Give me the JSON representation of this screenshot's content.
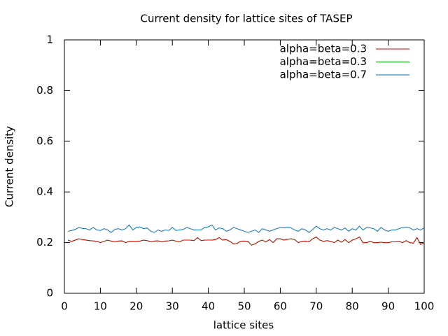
{
  "chart_data": {
    "type": "line",
    "title": "Current density for lattice sites of TASEP",
    "xlabel": "lattice sites",
    "ylabel": "Current density",
    "x": [
      1,
      2,
      3,
      4,
      5,
      6,
      7,
      8,
      9,
      10,
      11,
      12,
      13,
      14,
      15,
      16,
      17,
      18,
      19,
      20,
      21,
      22,
      23,
      24,
      25,
      26,
      27,
      28,
      29,
      30,
      31,
      32,
      33,
      34,
      35,
      36,
      37,
      38,
      39,
      40,
      41,
      42,
      43,
      44,
      45,
      46,
      47,
      48,
      49,
      50,
      51,
      52,
      53,
      54,
      55,
      56,
      57,
      58,
      59,
      60,
      61,
      62,
      63,
      64,
      65,
      66,
      67,
      68,
      69,
      70,
      71,
      72,
      73,
      74,
      75,
      76,
      77,
      78,
      79,
      80,
      81,
      82,
      83,
      84,
      85,
      86,
      87,
      88,
      89,
      90,
      91,
      92,
      93,
      94,
      95,
      96,
      97,
      98,
      99,
      100
    ],
    "series": [
      {
        "name": "alpha=beta=0.3",
        "color": "#dd0000",
        "values": [
          0.21,
          0.205,
          0.21,
          0.215,
          0.212,
          0.21,
          0.208,
          0.207,
          0.205,
          0.2,
          0.205,
          0.21,
          0.206,
          0.204,
          0.206,
          0.207,
          0.2,
          0.205,
          0.205,
          0.205,
          0.206,
          0.21,
          0.208,
          0.203,
          0.206,
          0.207,
          0.203,
          0.206,
          0.207,
          0.21,
          0.206,
          0.203,
          0.21,
          0.21,
          0.21,
          0.208,
          0.22,
          0.208,
          0.21,
          0.21,
          0.21,
          0.212,
          0.22,
          0.21,
          0.212,
          0.205,
          0.195,
          0.197,
          0.205,
          0.206,
          0.205,
          0.19,
          0.195,
          0.205,
          0.21,
          0.203,
          0.212,
          0.2,
          0.215,
          0.215,
          0.21,
          0.213,
          0.215,
          0.212,
          0.2,
          0.205,
          0.206,
          0.203,
          0.215,
          0.222,
          0.21,
          0.205,
          0.208,
          0.205,
          0.2,
          0.21,
          0.202,
          0.212,
          0.2,
          0.21,
          0.215,
          0.222,
          0.2,
          0.2,
          0.205,
          0.2,
          0.2,
          0.202,
          0.2,
          0.2,
          0.203,
          0.203,
          0.205,
          0.2,
          0.208,
          0.2,
          0.198,
          0.22,
          0.193,
          0.2
        ]
      },
      {
        "name": "alpha=beta=0.3",
        "color": "#00a000",
        "values": [
          0.21,
          0.205,
          0.21,
          0.215,
          0.212,
          0.21,
          0.208,
          0.207,
          0.205,
          0.2,
          0.205,
          0.21,
          0.206,
          0.204,
          0.206,
          0.207,
          0.2,
          0.205,
          0.205,
          0.205,
          0.206,
          0.21,
          0.208,
          0.203,
          0.206,
          0.207,
          0.203,
          0.206,
          0.207,
          0.21,
          0.206,
          0.203,
          0.21,
          0.21,
          0.21,
          0.208,
          0.22,
          0.208,
          0.21,
          0.21,
          0.21,
          0.212,
          0.22,
          0.21,
          0.212,
          0.205,
          0.195,
          0.197,
          0.205,
          0.206,
          0.205,
          0.19,
          0.195,
          0.205,
          0.21,
          0.203,
          0.212,
          0.2,
          0.215,
          0.215,
          0.21,
          0.213,
          0.215,
          0.212,
          0.2,
          0.205,
          0.206,
          0.203,
          0.215,
          0.222,
          0.21,
          0.205,
          0.208,
          0.205,
          0.2,
          0.21,
          0.202,
          0.212,
          0.2,
          0.21,
          0.215,
          0.222,
          0.2,
          0.2,
          0.205,
          0.2,
          0.2,
          0.202,
          0.2,
          0.2,
          0.203,
          0.203,
          0.205,
          0.2,
          0.208,
          0.2,
          0.198,
          0.22,
          0.193,
          0.2
        ]
      },
      {
        "name": "alpha=beta=0.7",
        "color": "#0070c0",
        "values": [
          0.245,
          0.248,
          0.252,
          0.26,
          0.256,
          0.255,
          0.25,
          0.26,
          0.25,
          0.248,
          0.255,
          0.25,
          0.24,
          0.252,
          0.255,
          0.25,
          0.255,
          0.27,
          0.25,
          0.26,
          0.262,
          0.255,
          0.258,
          0.245,
          0.24,
          0.25,
          0.245,
          0.25,
          0.248,
          0.26,
          0.248,
          0.25,
          0.252,
          0.26,
          0.255,
          0.25,
          0.25,
          0.25,
          0.26,
          0.262,
          0.27,
          0.25,
          0.258,
          0.255,
          0.245,
          0.25,
          0.26,
          0.255,
          0.25,
          0.245,
          0.24,
          0.245,
          0.25,
          0.24,
          0.255,
          0.25,
          0.245,
          0.25,
          0.255,
          0.26,
          0.258,
          0.262,
          0.258,
          0.25,
          0.245,
          0.255,
          0.25,
          0.24,
          0.252,
          0.265,
          0.255,
          0.25,
          0.255,
          0.25,
          0.26,
          0.255,
          0.25,
          0.258,
          0.245,
          0.255,
          0.25,
          0.265,
          0.25,
          0.26,
          0.258,
          0.255,
          0.245,
          0.26,
          0.25,
          0.245,
          0.25,
          0.25,
          0.255,
          0.26,
          0.26,
          0.258,
          0.25,
          0.255,
          0.25,
          0.258
        ]
      }
    ],
    "xlim": [
      0,
      100
    ],
    "xticks": [
      0,
      10,
      20,
      30,
      40,
      50,
      60,
      70,
      80,
      90,
      100
    ],
    "ylim": [
      0,
      1
    ],
    "yticks": [
      0,
      0.2,
      0.4,
      0.6,
      0.8,
      1
    ],
    "legend": "top-right"
  }
}
